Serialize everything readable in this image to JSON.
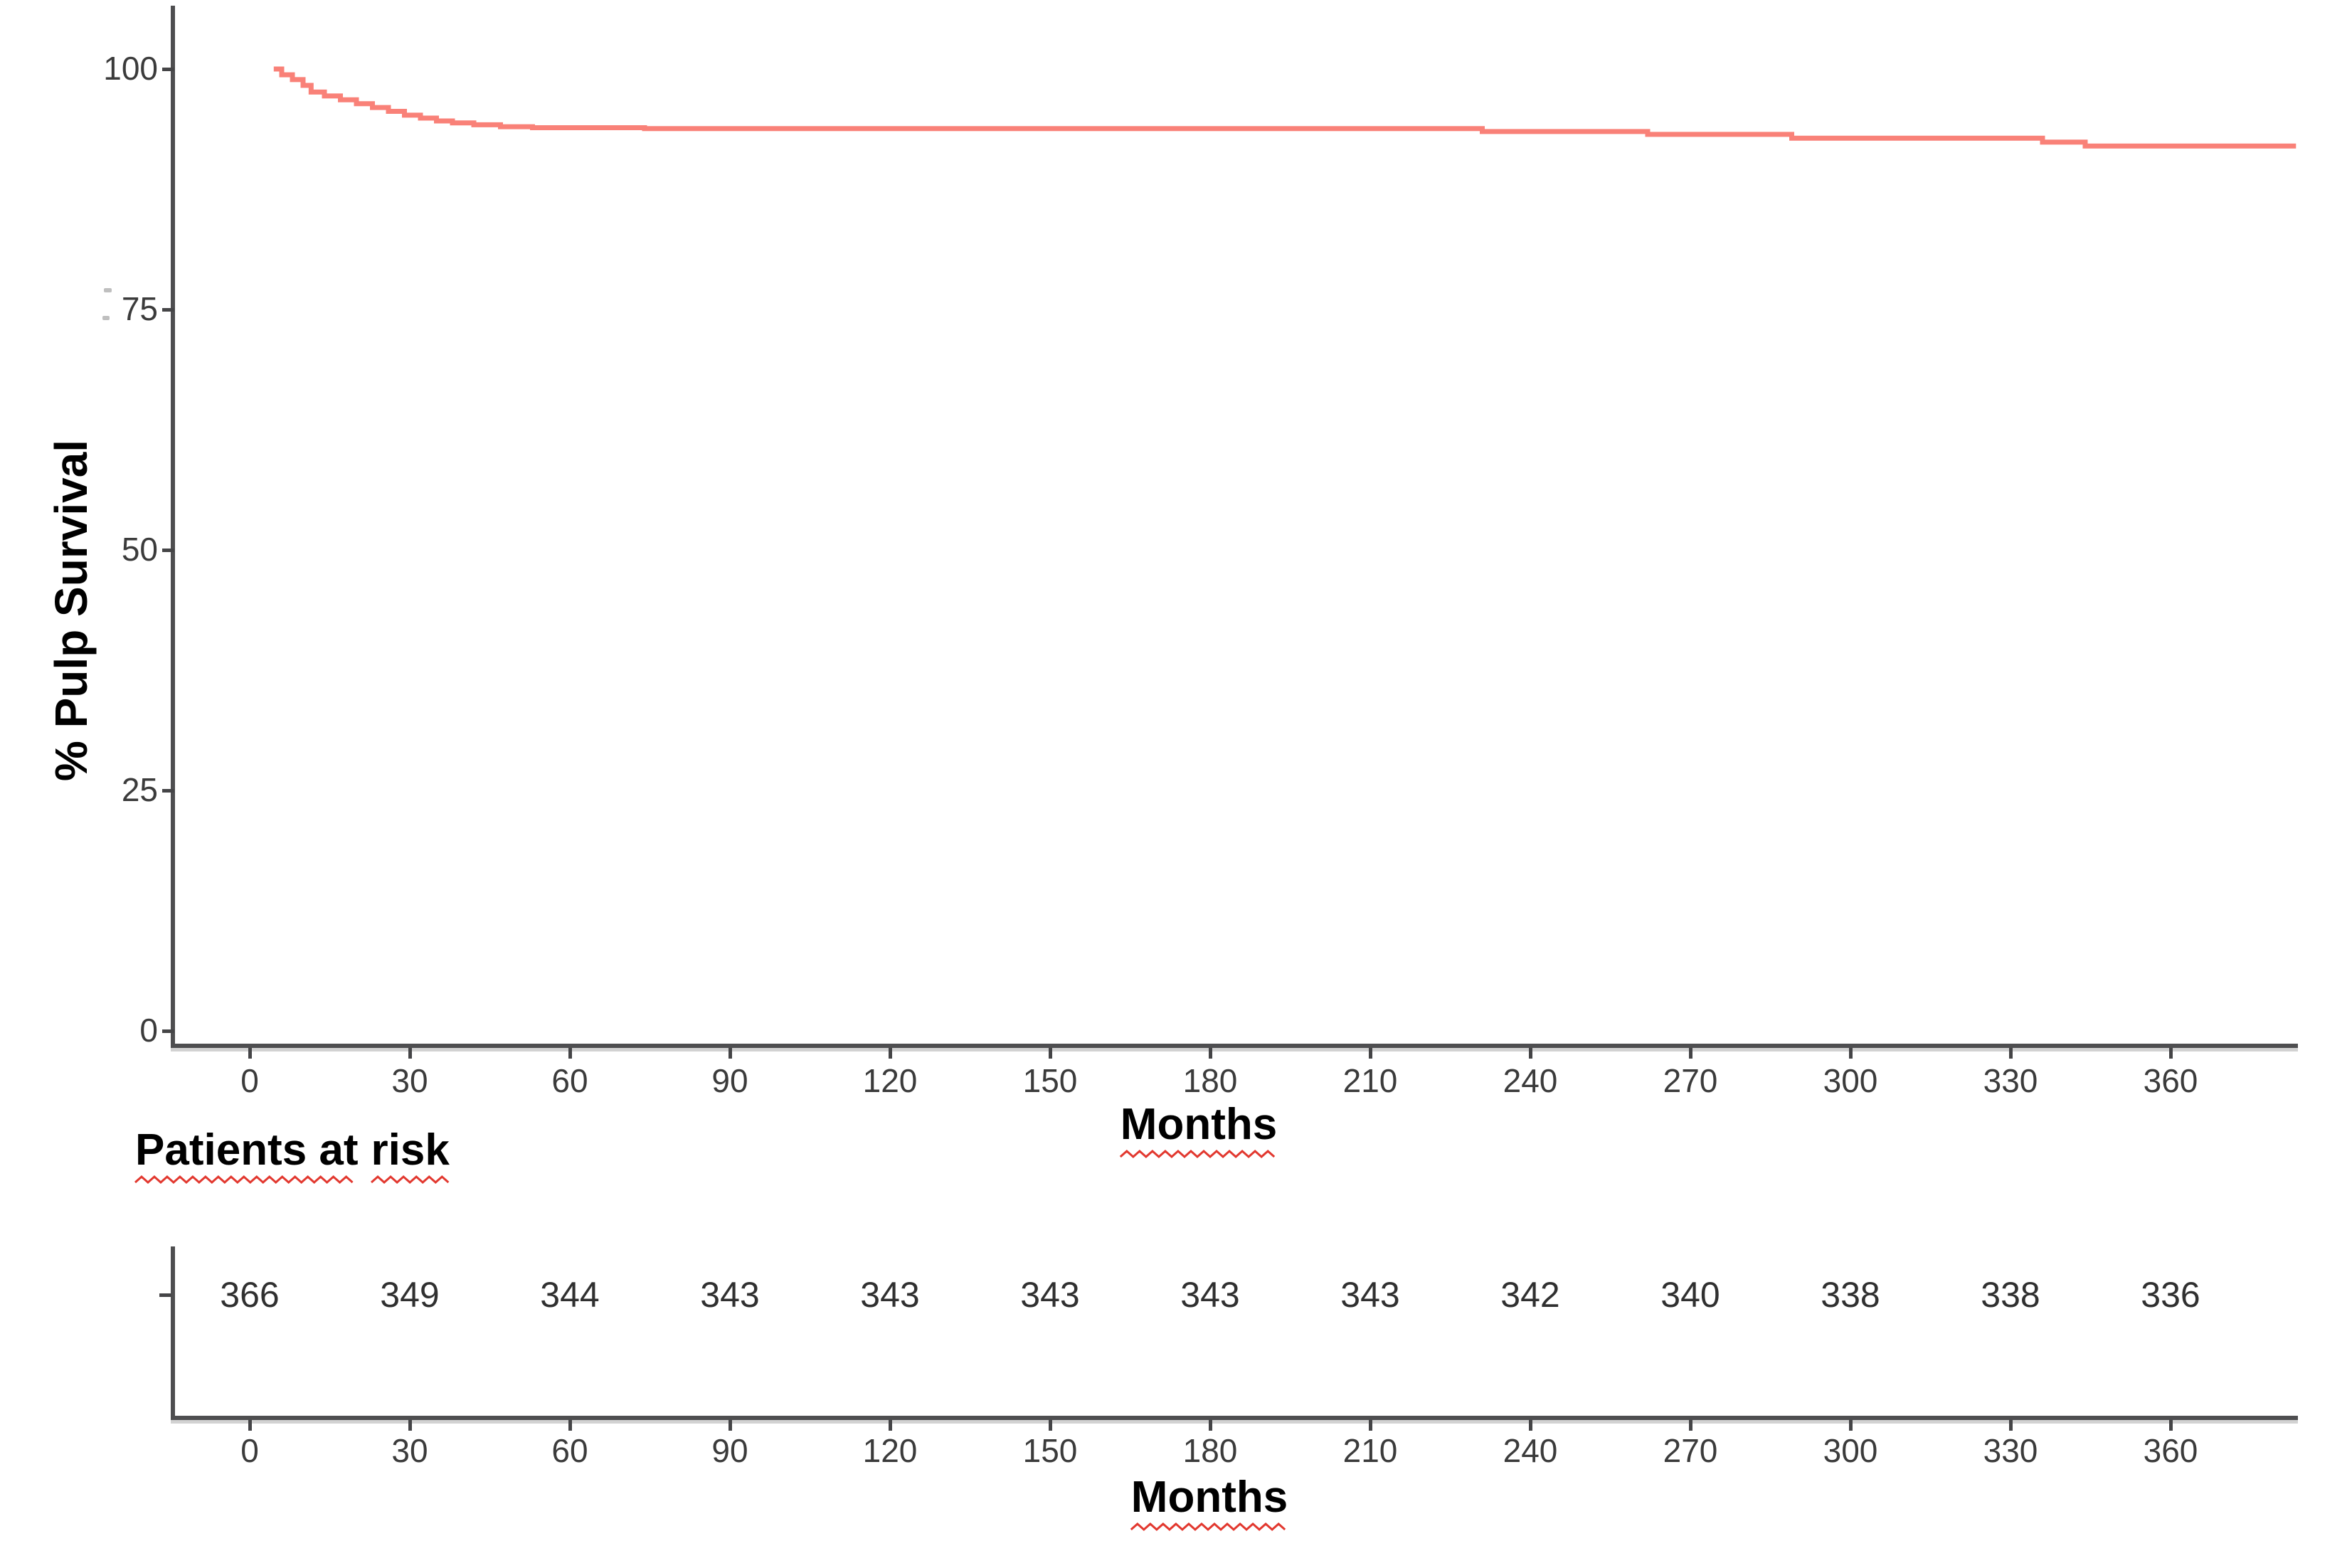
{
  "main_chart": {
    "y_axis_title": "% Pulp Survival",
    "x_axis_title": "Months",
    "y_ticks": [
      0,
      25,
      50,
      75,
      100
    ],
    "x_ticks": [
      0,
      30,
      60,
      90,
      120,
      150,
      180,
      210,
      240,
      270,
      300,
      330,
      360
    ],
    "curve_color": "#F8766D"
  },
  "risk_section": {
    "title": "Patients at risk",
    "title_parts": [
      "Patients at",
      "risk"
    ],
    "x_axis_title": "Months",
    "x_ticks": [
      0,
      30,
      60,
      90,
      120,
      150,
      180,
      210,
      240,
      270,
      300,
      330,
      360
    ],
    "counts": [
      366,
      349,
      344,
      343,
      343,
      343,
      343,
      343,
      342,
      340,
      338,
      338,
      336
    ]
  },
  "colors": {
    "curve": "#F8766D",
    "squiggle": "#E2382F",
    "axis": "#4E4E50",
    "tick_text": "#3B3B3B",
    "label_text": "#000000"
  },
  "chart_data": {
    "type": "line",
    "subtype": "kaplan-meier-step",
    "title": "",
    "xlabel": "Months",
    "ylabel": "% Pulp Survival",
    "xlim": [
      0,
      384
    ],
    "ylim": [
      0,
      100
    ],
    "grid": false,
    "legend": "none",
    "x_ticks": [
      0,
      30,
      60,
      90,
      120,
      150,
      180,
      210,
      240,
      270,
      300,
      330,
      360
    ],
    "y_ticks": [
      0,
      25,
      50,
      75,
      100
    ],
    "series": [
      {
        "name": "Pulp survival",
        "color": "#F8766D",
        "steps": [
          [
            4.5,
            100
          ],
          [
            6,
            99.4
          ],
          [
            8,
            98.9
          ],
          [
            10,
            98.3
          ],
          [
            11.5,
            97.6
          ],
          [
            14,
            97.2
          ],
          [
            17,
            96.8
          ],
          [
            20,
            96.4
          ],
          [
            23,
            96.0
          ],
          [
            26,
            95.6
          ],
          [
            29,
            95.2
          ],
          [
            32,
            94.9
          ],
          [
            35,
            94.6
          ],
          [
            38,
            94.4
          ],
          [
            42,
            94.2
          ],
          [
            47,
            94.0
          ],
          [
            53,
            93.9
          ],
          [
            74,
            93.8
          ],
          [
            231,
            93.5
          ],
          [
            262,
            93.2
          ],
          [
            289,
            92.8
          ],
          [
            336,
            92.4
          ],
          [
            344,
            92.0
          ]
        ],
        "end_month": 383.5
      }
    ],
    "risk_table": {
      "title": "Patients at risk",
      "xlabel": "Months",
      "months": [
        0,
        30,
        60,
        90,
        120,
        150,
        180,
        210,
        240,
        270,
        300,
        330,
        360
      ],
      "at_risk": [
        366,
        349,
        344,
        343,
        343,
        343,
        343,
        343,
        342,
        340,
        338,
        338,
        336
      ]
    }
  }
}
